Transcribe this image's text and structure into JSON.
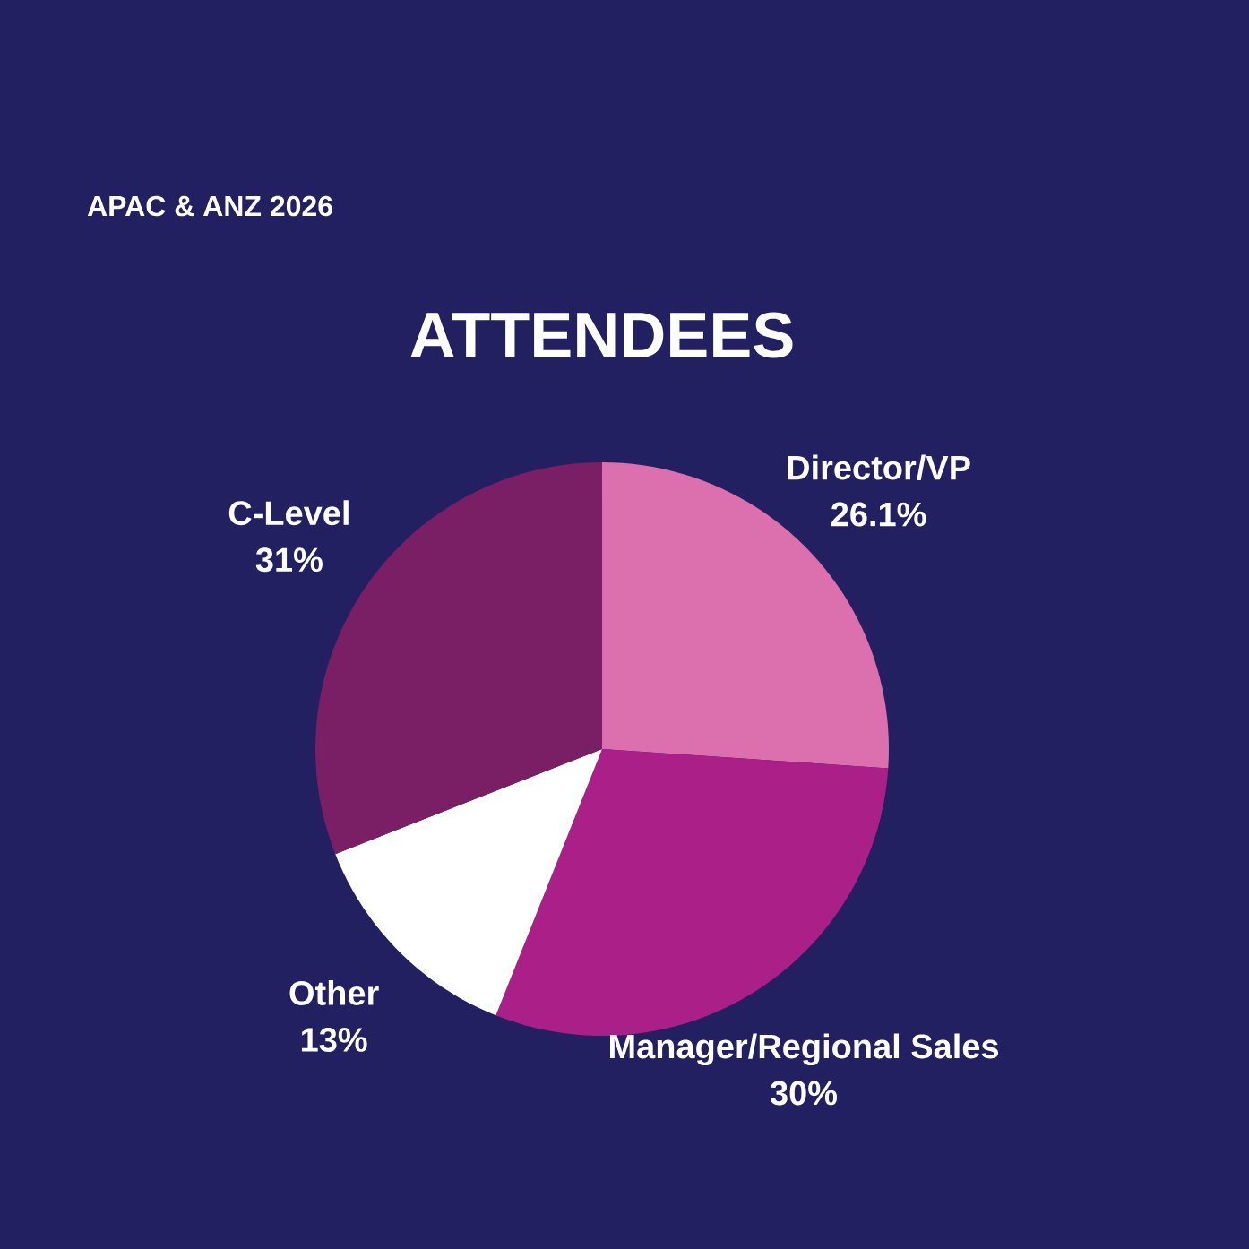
{
  "chart_data": {
    "type": "pie",
    "title": "ATTENDEES",
    "subtitle": "APAC & ANZ 2026",
    "categories": [
      "Director/VP",
      "Manager/Regional Sales",
      "Other",
      "C-Level"
    ],
    "values": [
      26.1,
      30,
      13,
      31
    ],
    "value_labels": [
      "26.1%",
      "30%",
      "13%",
      "31%"
    ],
    "colors": [
      "#dc6fad",
      "#aa2088",
      "#ffffff",
      "#7a1f66"
    ]
  }
}
